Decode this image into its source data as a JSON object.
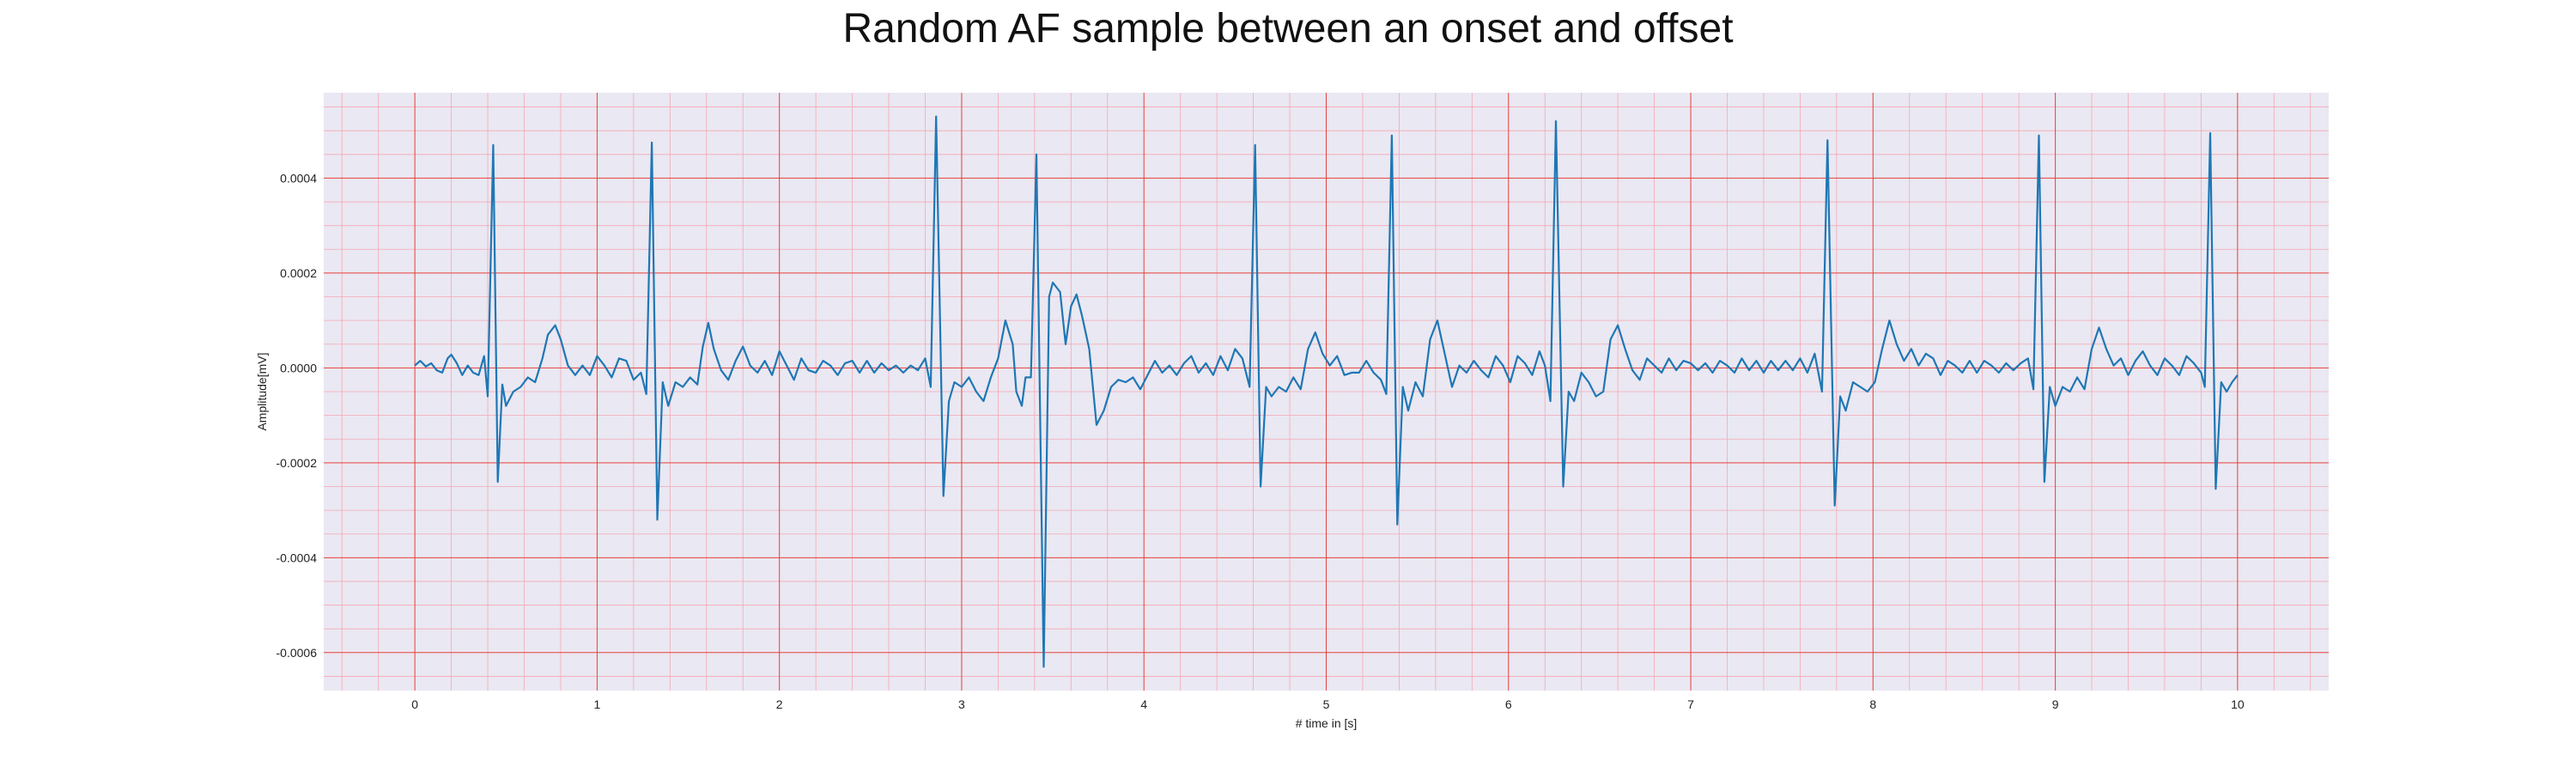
{
  "chart_data": {
    "type": "line",
    "title": "Random AF sample between an onset and offset",
    "xlabel": "# time in [s]",
    "ylabel": "Amplitude[mV]",
    "xlim": [
      -0.5,
      10.5
    ],
    "ylim": [
      -0.00068,
      0.00058
    ],
    "xticks": [
      0,
      1,
      2,
      3,
      4,
      5,
      6,
      7,
      8,
      9,
      10
    ],
    "xtick_labels": [
      "0",
      "1",
      "2",
      "3",
      "4",
      "5",
      "6",
      "7",
      "8",
      "9",
      "10"
    ],
    "yticks": [
      0.0004,
      0.0002,
      0.0,
      -0.0002,
      -0.0004,
      -0.0006
    ],
    "ytick_labels": [
      "0.0004",
      "0.0002",
      "0.0000",
      "-0.0002",
      "-0.0004",
      "-0.0006"
    ],
    "grid": true,
    "minor_grid": true,
    "colors": {
      "line": "#1f77b4",
      "major_grid": "#e8403a",
      "minor_grid": "#f4a8b4",
      "background": "#eae8f2"
    },
    "series": [
      {
        "values": [
          [
            0.0,
            5e-06
          ],
          [
            0.03,
            1.5e-05
          ],
          [
            0.06,
            3e-06
          ],
          [
            0.09,
            1e-05
          ],
          [
            0.12,
            -5e-06
          ],
          [
            0.15,
            -1e-05
          ],
          [
            0.18,
            2e-05
          ],
          [
            0.2,
            2.8e-05
          ],
          [
            0.23,
            1e-05
          ],
          [
            0.26,
            -1.5e-05
          ],
          [
            0.29,
            5e-06
          ],
          [
            0.32,
            -1e-05
          ],
          [
            0.35,
            -1.5e-05
          ],
          [
            0.38,
            2.5e-05
          ],
          [
            0.4,
            -6e-05
          ],
          [
            0.43,
            0.00047
          ],
          [
            0.455,
            -0.00024
          ],
          [
            0.48,
            -3.5e-05
          ],
          [
            0.5,
            -8e-05
          ],
          [
            0.54,
            -5e-05
          ],
          [
            0.58,
            -4e-05
          ],
          [
            0.62,
            -2e-05
          ],
          [
            0.66,
            -3e-05
          ],
          [
            0.7,
            2e-05
          ],
          [
            0.73,
            7e-05
          ],
          [
            0.77,
            9e-05
          ],
          [
            0.8,
            6e-05
          ],
          [
            0.84,
            5e-06
          ],
          [
            0.88,
            -1.5e-05
          ],
          [
            0.92,
            5e-06
          ],
          [
            0.96,
            -1.5e-05
          ],
          [
            1.0,
            2.5e-05
          ],
          [
            1.04,
            5e-06
          ],
          [
            1.08,
            -2e-05
          ],
          [
            1.12,
            2e-05
          ],
          [
            1.16,
            1.5e-05
          ],
          [
            1.2,
            -2.5e-05
          ],
          [
            1.24,
            -1e-05
          ],
          [
            1.27,
            -5.5e-05
          ],
          [
            1.3,
            0.000475
          ],
          [
            1.33,
            -0.00032
          ],
          [
            1.36,
            -3e-05
          ],
          [
            1.39,
            -8e-05
          ],
          [
            1.43,
            -3e-05
          ],
          [
            1.47,
            -4e-05
          ],
          [
            1.51,
            -2e-05
          ],
          [
            1.55,
            -3.5e-05
          ],
          [
            1.58,
            4.5e-05
          ],
          [
            1.61,
            9.5e-05
          ],
          [
            1.64,
            4e-05
          ],
          [
            1.68,
            -5e-06
          ],
          [
            1.72,
            -2.5e-05
          ],
          [
            1.76,
            1.5e-05
          ],
          [
            1.8,
            4.5e-05
          ],
          [
            1.84,
            5e-06
          ],
          [
            1.88,
            -1e-05
          ],
          [
            1.92,
            1.5e-05
          ],
          [
            1.96,
            -1.5e-05
          ],
          [
            2.0,
            3.5e-05
          ],
          [
            2.04,
            5e-06
          ],
          [
            2.08,
            -2.5e-05
          ],
          [
            2.12,
            2e-05
          ],
          [
            2.16,
            -5e-06
          ],
          [
            2.2,
            -1e-05
          ],
          [
            2.24,
            1.5e-05
          ],
          [
            2.28,
            5e-06
          ],
          [
            2.32,
            -1.5e-05
          ],
          [
            2.36,
            1e-05
          ],
          [
            2.4,
            1.5e-05
          ],
          [
            2.44,
            -1e-05
          ],
          [
            2.48,
            1.5e-05
          ],
          [
            2.52,
            -1e-05
          ],
          [
            2.56,
            1e-05
          ],
          [
            2.6,
            -5e-06
          ],
          [
            2.64,
            5e-06
          ],
          [
            2.68,
            -1e-05
          ],
          [
            2.72,
            5e-06
          ],
          [
            2.76,
            -5e-06
          ],
          [
            2.8,
            2e-05
          ],
          [
            2.83,
            -4e-05
          ],
          [
            2.86,
            0.00053
          ],
          [
            2.9,
            -0.00027
          ],
          [
            2.93,
            -7e-05
          ],
          [
            2.96,
            -3e-05
          ],
          [
            3.0,
            -4e-05
          ],
          [
            3.04,
            -2e-05
          ],
          [
            3.08,
            -5e-05
          ],
          [
            3.12,
            -7e-05
          ],
          [
            3.16,
            -2e-05
          ],
          [
            3.2,
            2e-05
          ],
          [
            3.24,
            0.0001
          ],
          [
            3.28,
            5e-05
          ],
          [
            3.3,
            -5e-05
          ],
          [
            3.33,
            -8e-05
          ],
          [
            3.35,
            -2e-05
          ],
          [
            3.38,
            -2e-05
          ],
          [
            3.41,
            0.00045
          ],
          [
            3.45,
            -0.00063
          ],
          [
            3.48,
            0.00015
          ],
          [
            3.5,
            0.00018
          ],
          [
            3.54,
            0.00016
          ],
          [
            3.57,
            5e-05
          ],
          [
            3.6,
            0.00013
          ],
          [
            3.63,
            0.000155
          ],
          [
            3.66,
            0.00011
          ],
          [
            3.7,
            4e-05
          ],
          [
            3.74,
            -0.00012
          ],
          [
            3.78,
            -9e-05
          ],
          [
            3.82,
            -4e-05
          ],
          [
            3.86,
            -2.5e-05
          ],
          [
            3.9,
            -3e-05
          ],
          [
            3.94,
            -2e-05
          ],
          [
            3.98,
            -4.5e-05
          ],
          [
            4.02,
            -1.5e-05
          ],
          [
            4.06,
            1.5e-05
          ],
          [
            4.1,
            -1e-05
          ],
          [
            4.14,
            5e-06
          ],
          [
            4.18,
            -1.5e-05
          ],
          [
            4.22,
            1e-05
          ],
          [
            4.26,
            2.5e-05
          ],
          [
            4.3,
            -1e-05
          ],
          [
            4.34,
            1e-05
          ],
          [
            4.38,
            -1.5e-05
          ],
          [
            4.42,
            2.5e-05
          ],
          [
            4.46,
            -5e-06
          ],
          [
            4.5,
            4e-05
          ],
          [
            4.54,
            2e-05
          ],
          [
            4.58,
            -4e-05
          ],
          [
            4.61,
            0.00047
          ],
          [
            4.64,
            -0.00025
          ],
          [
            4.67,
            -4e-05
          ],
          [
            4.7,
            -6e-05
          ],
          [
            4.74,
            -4e-05
          ],
          [
            4.78,
            -5e-05
          ],
          [
            4.82,
            -2e-05
          ],
          [
            4.86,
            -4.5e-05
          ],
          [
            4.9,
            4e-05
          ],
          [
            4.94,
            7.5e-05
          ],
          [
            4.98,
            3e-05
          ],
          [
            5.02,
            5e-06
          ],
          [
            5.06,
            2.5e-05
          ],
          [
            5.1,
            -1.5e-05
          ],
          [
            5.14,
            -1e-05
          ],
          [
            5.18,
            -1e-05
          ],
          [
            5.22,
            1.5e-05
          ],
          [
            5.26,
            -1e-05
          ],
          [
            5.3,
            -2.5e-05
          ],
          [
            5.33,
            -5.5e-05
          ],
          [
            5.36,
            0.00049
          ],
          [
            5.39,
            -0.00033
          ],
          [
            5.42,
            -4e-05
          ],
          [
            5.45,
            -9e-05
          ],
          [
            5.49,
            -3e-05
          ],
          [
            5.53,
            -6e-05
          ],
          [
            5.57,
            6e-05
          ],
          [
            5.61,
            0.0001
          ],
          [
            5.65,
            3e-05
          ],
          [
            5.69,
            -4e-05
          ],
          [
            5.73,
            5e-06
          ],
          [
            5.77,
            -1e-05
          ],
          [
            5.81,
            1.5e-05
          ],
          [
            5.85,
            -5e-06
          ],
          [
            5.89,
            -2e-05
          ],
          [
            5.93,
            2.5e-05
          ],
          [
            5.97,
            5e-06
          ],
          [
            6.01,
            -3e-05
          ],
          [
            6.05,
            2.5e-05
          ],
          [
            6.09,
            1e-05
          ],
          [
            6.13,
            -1.5e-05
          ],
          [
            6.17,
            3.5e-05
          ],
          [
            6.2,
            5e-06
          ],
          [
            6.23,
            -7e-05
          ],
          [
            6.26,
            0.00052
          ],
          [
            6.3,
            -0.00025
          ],
          [
            6.33,
            -5e-05
          ],
          [
            6.36,
            -7e-05
          ],
          [
            6.4,
            -1e-05
          ],
          [
            6.44,
            -3e-05
          ],
          [
            6.48,
            -6e-05
          ],
          [
            6.52,
            -5e-05
          ],
          [
            6.56,
            6e-05
          ],
          [
            6.6,
            9e-05
          ],
          [
            6.64,
            4e-05
          ],
          [
            6.68,
            -5e-06
          ],
          [
            6.72,
            -2.5e-05
          ],
          [
            6.76,
            2e-05
          ],
          [
            6.8,
            5e-06
          ],
          [
            6.84,
            -1e-05
          ],
          [
            6.88,
            2e-05
          ],
          [
            6.92,
            -5e-06
          ],
          [
            6.96,
            1.5e-05
          ],
          [
            7.0,
            1e-05
          ],
          [
            7.04,
            -5e-06
          ],
          [
            7.08,
            1e-05
          ],
          [
            7.12,
            -1e-05
          ],
          [
            7.16,
            1.5e-05
          ],
          [
            7.2,
            5e-06
          ],
          [
            7.24,
            -1e-05
          ],
          [
            7.28,
            2e-05
          ],
          [
            7.32,
            -5e-06
          ],
          [
            7.36,
            1.5e-05
          ],
          [
            7.4,
            -1e-05
          ],
          [
            7.44,
            1.5e-05
          ],
          [
            7.48,
            -5e-06
          ],
          [
            7.52,
            1.5e-05
          ],
          [
            7.56,
            -5e-06
          ],
          [
            7.6,
            2e-05
          ],
          [
            7.64,
            -1e-05
          ],
          [
            7.68,
            3e-05
          ],
          [
            7.72,
            -5e-05
          ],
          [
            7.75,
            0.00048
          ],
          [
            7.79,
            -0.00029
          ],
          [
            7.82,
            -6e-05
          ],
          [
            7.85,
            -9e-05
          ],
          [
            7.89,
            -3e-05
          ],
          [
            7.93,
            -4e-05
          ],
          [
            7.97,
            -5e-05
          ],
          [
            8.01,
            -3e-05
          ],
          [
            8.05,
            4e-05
          ],
          [
            8.09,
            0.0001
          ],
          [
            8.13,
            5e-05
          ],
          [
            8.17,
            1.5e-05
          ],
          [
            8.21,
            4e-05
          ],
          [
            8.25,
            5e-06
          ],
          [
            8.29,
            3e-05
          ],
          [
            8.33,
            2e-05
          ],
          [
            8.37,
            -1.5e-05
          ],
          [
            8.41,
            1.5e-05
          ],
          [
            8.45,
            5e-06
          ],
          [
            8.49,
            -1e-05
          ],
          [
            8.53,
            1.5e-05
          ],
          [
            8.57,
            -1e-05
          ],
          [
            8.61,
            1.5e-05
          ],
          [
            8.65,
            5e-06
          ],
          [
            8.69,
            -1e-05
          ],
          [
            8.73,
            1e-05
          ],
          [
            8.77,
            -5e-06
          ],
          [
            8.81,
            1e-05
          ],
          [
            8.85,
            2e-05
          ],
          [
            8.88,
            -4.5e-05
          ],
          [
            8.91,
            0.00049
          ],
          [
            8.94,
            -0.00024
          ],
          [
            8.97,
            -4e-05
          ],
          [
            9.0,
            -8e-05
          ],
          [
            9.04,
            -4e-05
          ],
          [
            9.08,
            -5e-05
          ],
          [
            9.12,
            -2e-05
          ],
          [
            9.16,
            -4.5e-05
          ],
          [
            9.2,
            4e-05
          ],
          [
            9.24,
            8.5e-05
          ],
          [
            9.28,
            4e-05
          ],
          [
            9.32,
            5e-06
          ],
          [
            9.36,
            2e-05
          ],
          [
            9.4,
            -1.5e-05
          ],
          [
            9.44,
            1.5e-05
          ],
          [
            9.48,
            3.5e-05
          ],
          [
            9.52,
            5e-06
          ],
          [
            9.56,
            -1.5e-05
          ],
          [
            9.6,
            2e-05
          ],
          [
            9.64,
            5e-06
          ],
          [
            9.68,
            -1.5e-05
          ],
          [
            9.72,
            2.5e-05
          ],
          [
            9.76,
            1e-05
          ],
          [
            9.8,
            -1e-05
          ],
          [
            9.82,
            -4e-05
          ],
          [
            9.85,
            0.000495
          ],
          [
            9.88,
            -0.000255
          ],
          [
            9.91,
            -3e-05
          ],
          [
            9.94,
            -5e-05
          ],
          [
            9.97,
            -3e-05
          ],
          [
            10.0,
            -1.5e-05
          ]
        ]
      }
    ]
  }
}
